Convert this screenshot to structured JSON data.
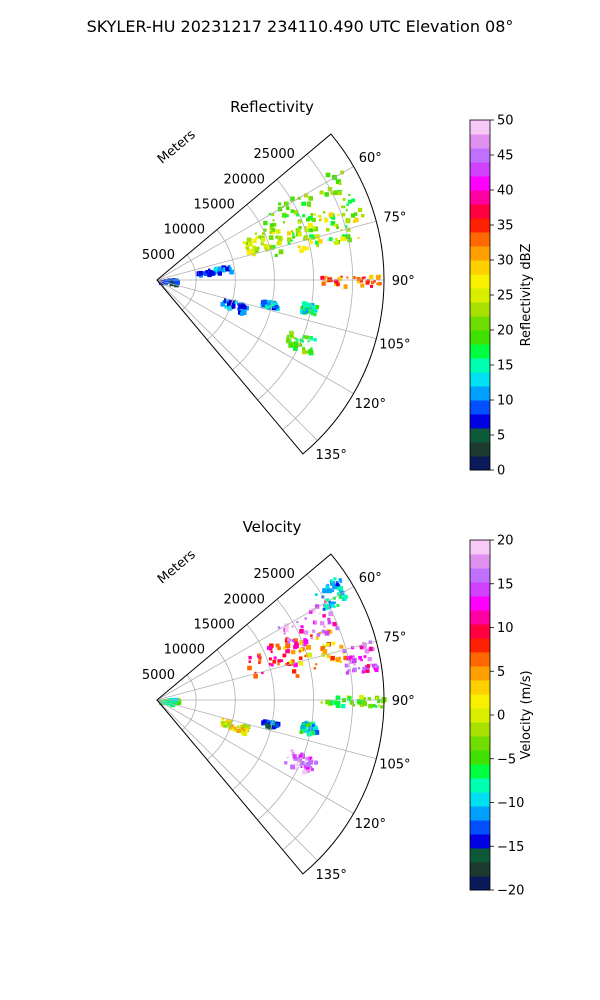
{
  "suptitle": "SKYLER-HU  20231217  234110.490 UTC Elevation 08°",
  "chart_data": [
    {
      "type": "heatmap",
      "projection": "polar sector (PPI)",
      "title": "Reflectivity",
      "radial_label": "Meters",
      "range_ticks": [
        "5000",
        "10000",
        "15000",
        "20000",
        "25000"
      ],
      "range_values": [
        5000,
        10000,
        15000,
        20000,
        25000
      ],
      "rmax": 29000,
      "angle_range_deg": [
        50,
        140
      ],
      "angle_ticks": [
        "60°",
        "75°",
        "90°",
        "105°",
        "120°",
        "135°"
      ],
      "angle_values": [
        60,
        75,
        90,
        105,
        120,
        135
      ],
      "grid": true,
      "colorbar": {
        "label": "Reflectivity dBZ",
        "min": 0,
        "max": 50,
        "ticks": [
          "0",
          "5",
          "10",
          "15",
          "20",
          "25",
          "30",
          "35",
          "40",
          "45",
          "50"
        ],
        "tick_values": [
          0,
          5,
          10,
          15,
          20,
          25,
          30,
          35,
          40,
          45,
          50
        ],
        "colors": [
          "#0a1a5a",
          "#1c3a2e",
          "#0d5a3a",
          "#0000e0",
          "#0050ff",
          "#00a0ff",
          "#00e0f0",
          "#00ffb0",
          "#00ff40",
          "#40e000",
          "#70dd00",
          "#a8e000",
          "#d8f000",
          "#f8f000",
          "#ffd000",
          "#ffa000",
          "#ff6800",
          "#ff2000",
          "#ff0040",
          "#ff00a0",
          "#ff00ff",
          "#d040ff",
          "#c070ff",
          "#e090f0",
          "#f8c8f8"
        ]
      },
      "echo_regions": [
        {
          "az": [
            57,
            78
          ],
          "r": [
            15000,
            27500
          ],
          "value": 20
        },
        {
          "az": [
            64,
            74
          ],
          "r": [
            12000,
            17000
          ],
          "value": 24
        },
        {
          "az": [
            67,
            78
          ],
          "r": [
            17500,
            26500
          ],
          "value": 26
        },
        {
          "az": [
            88.5,
            91.5
          ],
          "r": [
            20500,
            29000
          ],
          "value": 33
        },
        {
          "az": [
            77,
            82
          ],
          "r": [
            5000,
            9500
          ],
          "value": 10
        },
        {
          "az": [
            98,
            102
          ],
          "r": [
            18500,
            20500
          ],
          "value": 15
        },
        {
          "az": [
            110,
            116
          ],
          "r": [
            18000,
            21500
          ],
          "value": 19
        },
        {
          "az": [
            104,
            111
          ],
          "r": [
            8500,
            12000
          ],
          "value": 9
        },
        {
          "az": [
            100,
            103
          ],
          "r": [
            13500,
            15500
          ],
          "value": 11
        },
        {
          "az": [
            80,
            100
          ],
          "r": [
            200,
            2500
          ],
          "value": 6
        }
      ]
    },
    {
      "type": "heatmap",
      "projection": "polar sector (PPI)",
      "title": "Velocity",
      "radial_label": "Meters",
      "range_ticks": [
        "5000",
        "10000",
        "15000",
        "20000",
        "25000"
      ],
      "range_values": [
        5000,
        10000,
        15000,
        20000,
        25000
      ],
      "rmax": 29000,
      "angle_range_deg": [
        50,
        140
      ],
      "angle_ticks": [
        "60°",
        "75°",
        "90°",
        "105°",
        "120°",
        "135°"
      ],
      "angle_values": [
        60,
        75,
        90,
        105,
        120,
        135
      ],
      "grid": true,
      "colorbar": {
        "label": "Velocity (m/s)",
        "min": -20,
        "max": 20,
        "ticks": [
          "−20",
          "−15",
          "−10",
          "−5",
          "0",
          "5",
          "10",
          "15",
          "20"
        ],
        "tick_values": [
          -20,
          -15,
          -10,
          -5,
          0,
          5,
          10,
          15,
          20
        ],
        "colors": [
          "#0a1a5a",
          "#1c3a2e",
          "#0d5a3a",
          "#0000e0",
          "#0050ff",
          "#00a0ff",
          "#00e0f0",
          "#00ffb0",
          "#00ff40",
          "#40e000",
          "#70dd00",
          "#a8e000",
          "#d8f000",
          "#f8f000",
          "#ffd000",
          "#ffa000",
          "#ff6800",
          "#ff2000",
          "#ff0040",
          "#ff00a0",
          "#ff00ff",
          "#d040ff",
          "#c070ff",
          "#e090f0",
          "#f8c8f8"
        ]
      },
      "echo_regions": [
        {
          "az": [
            63,
            75
          ],
          "r": [
            12000,
            20000
          ],
          "value": 10
        },
        {
          "az": [
            66,
            80
          ],
          "r": [
            17500,
            24500
          ],
          "value": 4
        },
        {
          "az": [
            58,
            68
          ],
          "r": [
            18000,
            25000
          ],
          "value": 15
        },
        {
          "az": [
            55,
            62
          ],
          "r": [
            24000,
            28000
          ],
          "value": -11
        },
        {
          "az": [
            74,
            82
          ],
          "r": [
            24000,
            28500
          ],
          "value": 14
        },
        {
          "az": [
            88.5,
            91.5
          ],
          "r": [
            20500,
            29000
          ],
          "value": -4
        },
        {
          "az": [
            110,
            116
          ],
          "r": [
            18000,
            21500
          ],
          "value": 16
        },
        {
          "az": [
            105,
            111
          ],
          "r": [
            8500,
            12000
          ],
          "value": 1
        },
        {
          "az": [
            100,
            103
          ],
          "r": [
            13500,
            15500
          ],
          "value": -14
        },
        {
          "az": [
            98,
            102
          ],
          "r": [
            18500,
            20500
          ],
          "value": -9
        },
        {
          "az": [
            80,
            100
          ],
          "r": [
            200,
            2500
          ],
          "value": -7
        }
      ]
    }
  ]
}
